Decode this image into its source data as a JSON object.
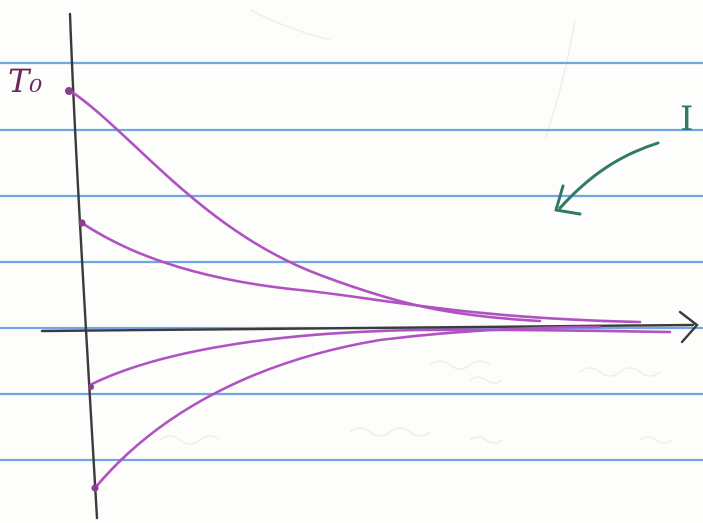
{
  "labels": {
    "initial_value": "T₀",
    "margin_letter": "I"
  },
  "colors": {
    "paper": "#fdfdfb",
    "ruled_line": "#6fa6e6",
    "axis_ink": "#3b3b3b",
    "curve_ink": "#b052c2",
    "label_ink": "#6a2a5c",
    "arrow_ink": "#2f7a68"
  },
  "curves": [
    {
      "name": "curve-from-T0",
      "start": "T0"
    },
    {
      "name": "curve-from-upper-mid",
      "start": "positive"
    },
    {
      "name": "curve-from-lower-mid",
      "start": "negative"
    },
    {
      "name": "curve-from-bottom",
      "start": "negative"
    }
  ]
}
